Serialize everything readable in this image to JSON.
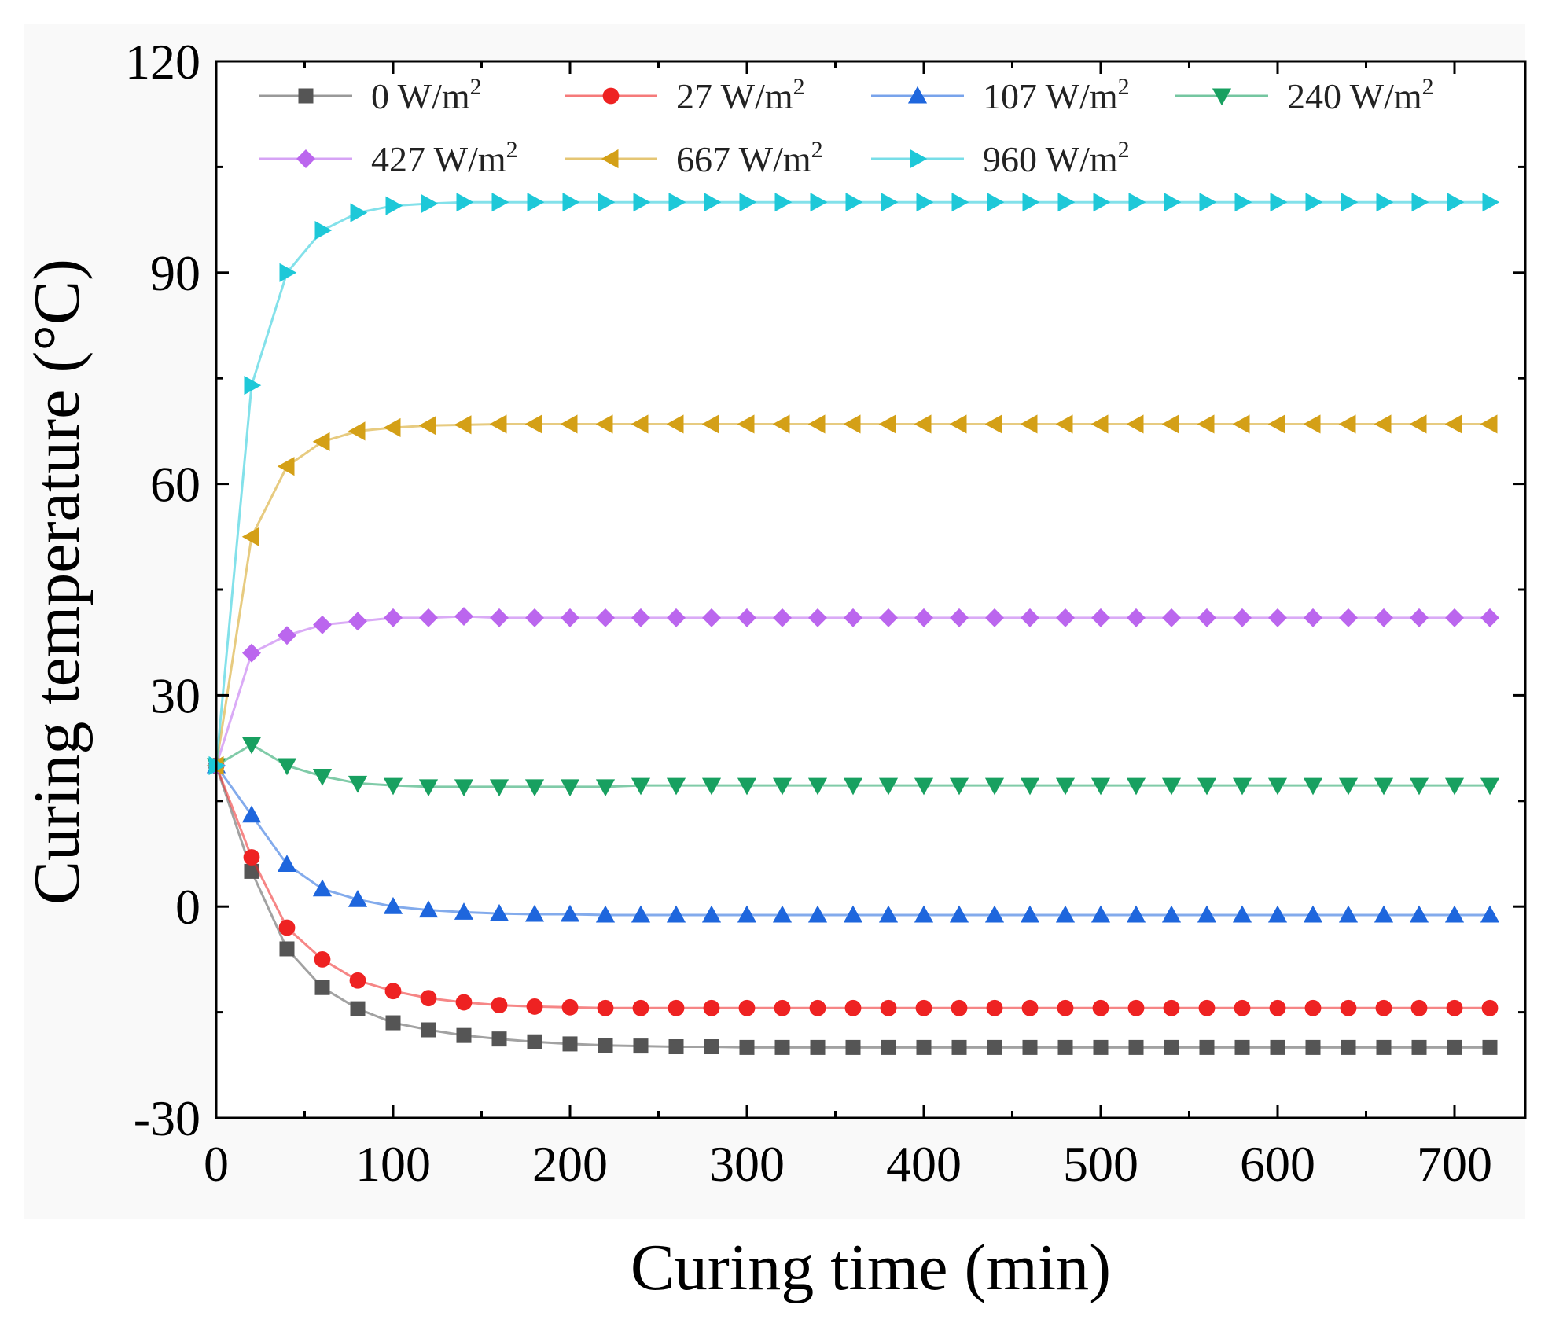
{
  "chart_data": {
    "type": "line",
    "title": "",
    "xlabel": "Curing time (min)",
    "ylabel": "Curing temperature (°C)",
    "xlim": [
      0,
      740
    ],
    "ylim": [
      -30,
      120
    ],
    "xticks": [
      0,
      100,
      200,
      300,
      400,
      500,
      600,
      700
    ],
    "yticks": [
      -30,
      0,
      30,
      60,
      90,
      120
    ],
    "grid": false,
    "legend_position": "top",
    "x": [
      0,
      20,
      40,
      60,
      80,
      100,
      120,
      140,
      160,
      180,
      200,
      220,
      240,
      260,
      280,
      300,
      320,
      340,
      360,
      380,
      400,
      420,
      440,
      460,
      480,
      500,
      520,
      540,
      560,
      580,
      600,
      620,
      640,
      660,
      680,
      700,
      720
    ],
    "series": [
      {
        "name": "0 W/m²",
        "label_main": "0 W/m",
        "label_sup": "2",
        "color": "#555555",
        "marker": "square",
        "values": [
          20,
          5,
          -6,
          -11.5,
          -14.5,
          -16.5,
          -17.5,
          -18.3,
          -18.8,
          -19.2,
          -19.5,
          -19.7,
          -19.8,
          -19.9,
          -19.9,
          -20,
          -20,
          -20,
          -20,
          -20,
          -20,
          -20,
          -20,
          -20,
          -20,
          -20,
          -20,
          -20,
          -20,
          -20,
          -20,
          -20,
          -20,
          -20,
          -20,
          -20,
          -20
        ]
      },
      {
        "name": "27 W/m²",
        "label_main": "27 W/m",
        "label_sup": "2",
        "color": "#ee2222",
        "marker": "circle",
        "values": [
          20,
          7,
          -3,
          -7.5,
          -10.5,
          -12,
          -13,
          -13.6,
          -14,
          -14.2,
          -14.3,
          -14.4,
          -14.4,
          -14.4,
          -14.4,
          -14.4,
          -14.4,
          -14.4,
          -14.4,
          -14.4,
          -14.4,
          -14.4,
          -14.4,
          -14.4,
          -14.4,
          -14.4,
          -14.4,
          -14.4,
          -14.4,
          -14.4,
          -14.4,
          -14.4,
          -14.4,
          -14.4,
          -14.4,
          -14.4,
          -14.4
        ]
      },
      {
        "name": "107 W/m²",
        "label_main": "107 W/m",
        "label_sup": "2",
        "color": "#1e66dd",
        "marker": "triangle-up",
        "values": [
          20,
          13,
          6,
          2.5,
          1,
          0,
          -0.5,
          -0.8,
          -1,
          -1.1,
          -1.1,
          -1.2,
          -1.2,
          -1.2,
          -1.2,
          -1.2,
          -1.2,
          -1.2,
          -1.2,
          -1.2,
          -1.2,
          -1.2,
          -1.2,
          -1.2,
          -1.2,
          -1.2,
          -1.2,
          -1.2,
          -1.2,
          -1.2,
          -1.2,
          -1.2,
          -1.2,
          -1.2,
          -1.2,
          -1.2,
          -1.2
        ]
      },
      {
        "name": "240 W/m²",
        "label_main": "240 W/m",
        "label_sup": "2",
        "color": "#18a060",
        "marker": "triangle-down",
        "values": [
          20,
          23,
          20,
          18.5,
          17.5,
          17.2,
          17,
          17,
          17,
          17,
          17,
          17,
          17.2,
          17.2,
          17.2,
          17.2,
          17.2,
          17.2,
          17.2,
          17.2,
          17.2,
          17.2,
          17.2,
          17.2,
          17.2,
          17.2,
          17.2,
          17.2,
          17.2,
          17.2,
          17.2,
          17.2,
          17.2,
          17.2,
          17.2,
          17.2,
          17.2
        ]
      },
      {
        "name": "427 W/m²",
        "label_main": "427 W/m",
        "label_sup": "2",
        "color": "#bb66ee",
        "marker": "diamond",
        "values": [
          20,
          36,
          38.5,
          40,
          40.5,
          41,
          41,
          41.2,
          41,
          41,
          41,
          41,
          41,
          41,
          41,
          41,
          41,
          41,
          41,
          41,
          41,
          41,
          41,
          41,
          41,
          41,
          41,
          41,
          41,
          41,
          41,
          41,
          41,
          41,
          41,
          41,
          41
        ]
      },
      {
        "name": "667 W/m²",
        "label_main": "667 W/m",
        "label_sup": "2",
        "color": "#d4a017",
        "marker": "triangle-left",
        "values": [
          20,
          52.5,
          62.5,
          66,
          67.5,
          68,
          68.3,
          68.4,
          68.5,
          68.5,
          68.5,
          68.5,
          68.5,
          68.5,
          68.5,
          68.5,
          68.5,
          68.5,
          68.5,
          68.5,
          68.5,
          68.5,
          68.5,
          68.5,
          68.5,
          68.5,
          68.5,
          68.5,
          68.5,
          68.5,
          68.5,
          68.5,
          68.5,
          68.5,
          68.5,
          68.5,
          68.5
        ]
      },
      {
        "name": "960 W/m²",
        "label_main": "960 W/m",
        "label_sup": "2",
        "color": "#1ec8d8",
        "marker": "triangle-right",
        "values": [
          20,
          74,
          90,
          96,
          98.5,
          99.5,
          99.8,
          100,
          100,
          100,
          100,
          100,
          100,
          100,
          100,
          100,
          100,
          100,
          100,
          100,
          100,
          100,
          100,
          100,
          100,
          100,
          100,
          100,
          100,
          100,
          100,
          100,
          100,
          100,
          100,
          100,
          100
        ]
      }
    ]
  }
}
